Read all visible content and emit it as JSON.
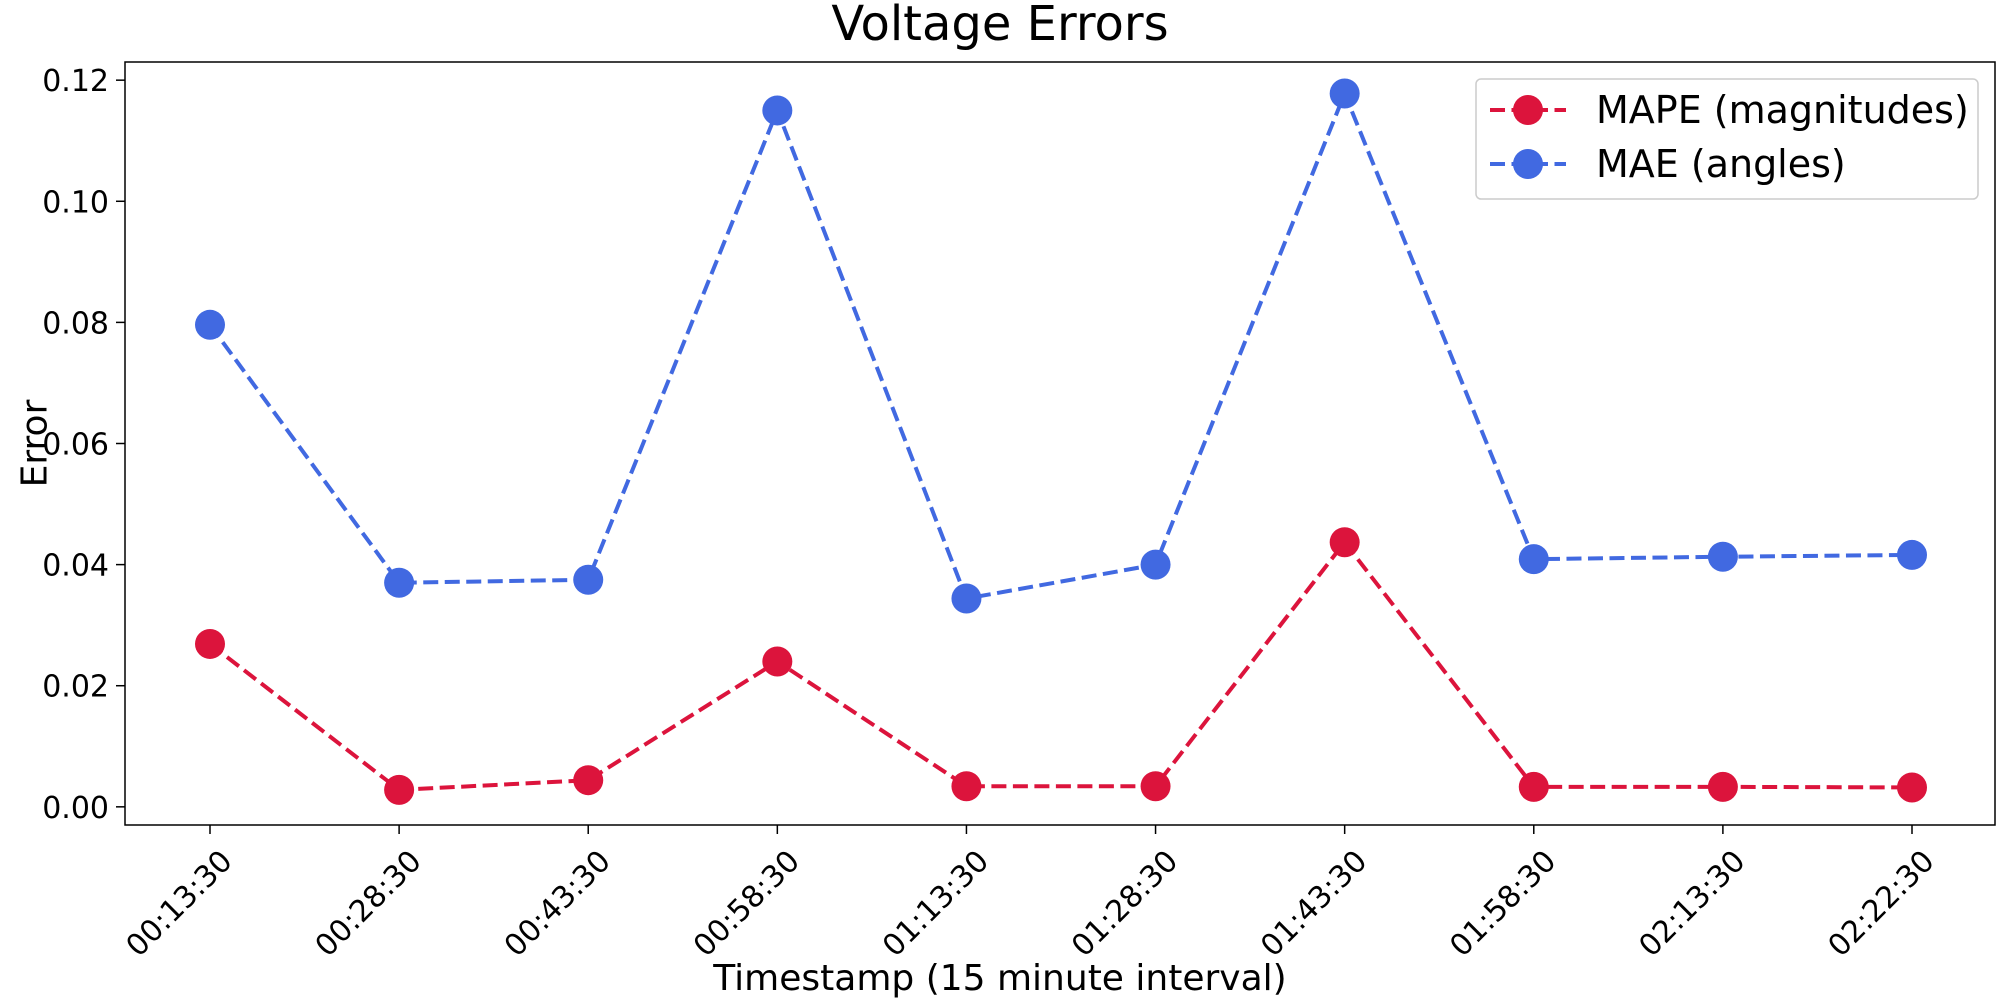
{
  "chart_data": {
    "type": "line",
    "title": "Voltage Errors",
    "xlabel": "Timestamp (15 minute interval)",
    "ylabel": "Error",
    "categories": [
      "00:13:30",
      "00:28:30",
      "00:43:30",
      "00:58:30",
      "01:13:30",
      "01:28:30",
      "01:43:30",
      "01:58:30",
      "02:13:30",
      "02:22:30"
    ],
    "ylim": [
      -0.003,
      0.123
    ],
    "yticks": [
      0.0,
      0.02,
      0.04,
      0.06,
      0.08,
      0.1,
      0.12
    ],
    "ytick_labels": [
      "0.00",
      "0.02",
      "0.04",
      "0.06",
      "0.08",
      "0.10",
      "0.12"
    ],
    "grid": false,
    "legend_position": "top-right",
    "series": [
      {
        "name": "MAPE (magnitudes)",
        "color": "#dc143c",
        "line_style": "dashed",
        "marker": "circle",
        "values": [
          0.0269,
          0.0028,
          0.0044,
          0.024,
          0.0034,
          0.0034,
          0.0437,
          0.0033,
          0.0033,
          0.0032
        ]
      },
      {
        "name": "MAE (angles)",
        "color": "#4169e1",
        "line_style": "dashed",
        "marker": "circle",
        "values": [
          0.0796,
          0.037,
          0.0375,
          0.115,
          0.0344,
          0.04,
          0.1178,
          0.0409,
          0.0413,
          0.0416
        ]
      }
    ]
  }
}
